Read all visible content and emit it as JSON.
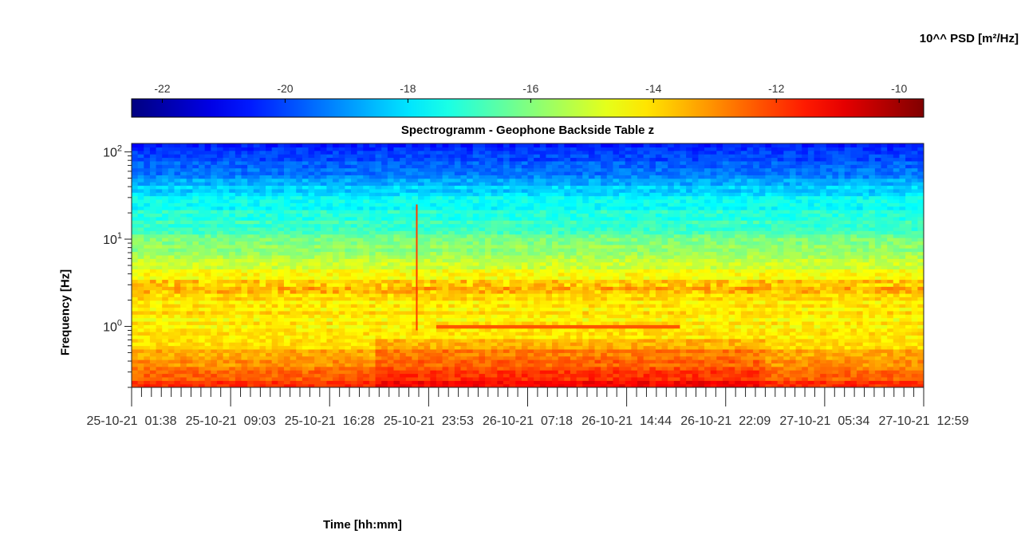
{
  "chart_data": {
    "type": "heatmap",
    "title": "Spectrogramm - Geophone Backside Table z",
    "xlabel": "Time [hh:mm]",
    "ylabel": "Frequency [Hz]",
    "y_scale": "log",
    "ylim": [
      0.2,
      125
    ],
    "y_ticks": [
      {
        "value": 1,
        "base": "10",
        "exp": "0"
      },
      {
        "value": 10,
        "base": "10",
        "exp": "1"
      },
      {
        "value": 100,
        "base": "10",
        "exp": "2"
      }
    ],
    "x_tick_labels": [
      "25-10-21  01:38",
      "25-10-21  09:03",
      "25-10-21  16:28",
      "25-10-21  23:53",
      "26-10-21  07:18",
      "26-10-21  14:44",
      "26-10-21  22:09",
      "27-10-21  05:34",
      "27-10-21  12:59"
    ],
    "colorbar": {
      "title": "10^^ PSD [m²/Hz]",
      "range": [
        -22.5,
        -9.6
      ],
      "ticks": [
        -22,
        -20,
        -18,
        -16,
        -14,
        -12,
        -10
      ],
      "tick_labels": [
        "-22",
        "-20",
        "-18",
        "-16",
        "-14",
        "-12",
        "-10"
      ],
      "colormap": "jet"
    },
    "psd_profile_log10": [
      {
        "freq_hz": 0.2,
        "value": -11.8
      },
      {
        "freq_hz": 0.35,
        "value": -12.8
      },
      {
        "freq_hz": 0.6,
        "value": -13.8
      },
      {
        "freq_hz": 1.0,
        "value": -14.3
      },
      {
        "freq_hz": 3.0,
        "value": -14.0
      },
      {
        "freq_hz": 10,
        "value": -16.3
      },
      {
        "freq_hz": 30,
        "value": -17.8
      },
      {
        "freq_hz": 60,
        "value": -19.3
      },
      {
        "freq_hz": 125,
        "value": -20.5
      }
    ],
    "annotations": [
      {
        "kind": "line",
        "freq_hz": 1.0,
        "time_frac_start": 0.38,
        "time_frac_end": 0.69,
        "value": -12.3
      },
      {
        "kind": "spike",
        "time_frac": 0.36,
        "freq_hz_from": 0.9,
        "freq_hz_to": 25,
        "value": -12.0
      }
    ]
  }
}
